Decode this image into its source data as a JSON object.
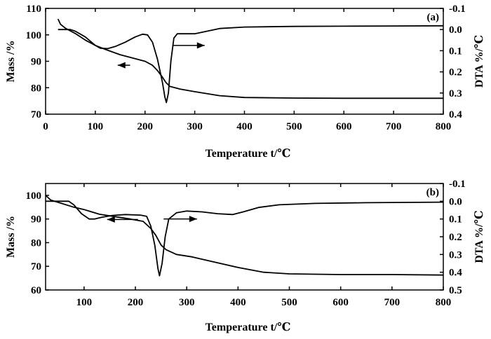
{
  "chart_data": [
    {
      "type": "line",
      "panel_label": "(a)",
      "xlabel": "Temperature t/℃",
      "ylabel": "Mass /%",
      "y2label": "DTA %/℃",
      "xlim": [
        0,
        800
      ],
      "ylim": [
        70,
        110
      ],
      "y2lim": [
        -0.1,
        0.4
      ],
      "y2_inverted": true,
      "x_ticks": [
        0,
        100,
        200,
        300,
        400,
        500,
        600,
        700,
        800
      ],
      "y_ticks": [
        70,
        80,
        90,
        100,
        110
      ],
      "y2_ticks": [
        -0.1,
        0.0,
        0.1,
        0.2,
        0.3,
        0.4
      ],
      "y2_tick_labels": [
        "-0.1",
        "0.0",
        "0.1",
        "0.2",
        "0.3",
        "0.4"
      ],
      "grid": false,
      "series": [
        {
          "axis": "left",
          "points": [
            [
              25,
              106
            ],
            [
              30,
              104
            ],
            [
              40,
              102.5
            ],
            [
              60,
              100.5
            ],
            [
              80,
              98
            ],
            [
              100,
              96
            ],
            [
              120,
              94.5
            ],
            [
              150,
              92.5
            ],
            [
              180,
              91
            ],
            [
              200,
              90
            ],
            [
              215,
              88.5
            ],
            [
              225,
              86.5
            ],
            [
              235,
              84
            ],
            [
              242,
              82
            ],
            [
              250,
              80.5
            ],
            [
              270,
              79.5
            ],
            [
              300,
              78.5
            ],
            [
              350,
              77
            ],
            [
              400,
              76.3
            ],
            [
              500,
              76.1
            ],
            [
              600,
              76
            ],
            [
              700,
              76
            ],
            [
              800,
              76
            ]
          ]
        },
        {
          "axis": "right",
          "points": [
            [
              25,
              0.0
            ],
            [
              50,
              0.0
            ],
            [
              60,
              0.008
            ],
            [
              80,
              0.035
            ],
            [
              100,
              0.075
            ],
            [
              110,
              0.088
            ],
            [
              125,
              0.09
            ],
            [
              140,
              0.08
            ],
            [
              160,
              0.06
            ],
            [
              180,
              0.035
            ],
            [
              195,
              0.022
            ],
            [
              205,
              0.025
            ],
            [
              215,
              0.06
            ],
            [
              225,
              0.14
            ],
            [
              235,
              0.25
            ],
            [
              240,
              0.32
            ],
            [
              243,
              0.345
            ],
            [
              247,
              0.3
            ],
            [
              252,
              0.15
            ],
            [
              258,
              0.04
            ],
            [
              265,
              0.02
            ],
            [
              280,
              0.02
            ],
            [
              300,
              0.02
            ],
            [
              320,
              0.01
            ],
            [
              350,
              -0.005
            ],
            [
              400,
              -0.012
            ],
            [
              500,
              -0.015
            ],
            [
              600,
              -0.016
            ],
            [
              700,
              -0.017
            ],
            [
              800,
              -0.018
            ]
          ]
        }
      ],
      "annotations": [
        {
          "type": "arrow",
          "direction": "left",
          "points_to": "left axis",
          "at": [
            145,
            170
          ],
          "y_value": 88.5
        },
        {
          "type": "arrow",
          "direction": "right",
          "points_to": "right axis",
          "at": [
            255,
            320
          ],
          "y2_value": 0.075
        }
      ]
    },
    {
      "type": "line",
      "panel_label": "(b)",
      "xlabel": "Temperature t/℃",
      "ylabel": "Mass /%",
      "y2label": "DTA %/℃",
      "xlim": [
        25,
        800
      ],
      "ylim": [
        60,
        105
      ],
      "y2lim": [
        -0.1,
        0.5
      ],
      "y2_inverted": true,
      "x_ticks": [
        100,
        200,
        300,
        400,
        500,
        600,
        700,
        800
      ],
      "y_ticks": [
        60,
        70,
        80,
        90,
        100
      ],
      "y2_ticks": [
        -0.1,
        0.0,
        0.1,
        0.2,
        0.3,
        0.4,
        0.5
      ],
      "y2_tick_labels": [
        "-0.1",
        "0.0",
        "0.1",
        "0.2",
        "0.3",
        "0.4",
        "0.5"
      ],
      "grid": false,
      "series": [
        {
          "axis": "left",
          "points": [
            [
              25,
              100
            ],
            [
              35,
              98
            ],
            [
              50,
              97
            ],
            [
              80,
              95
            ],
            [
              100,
              94
            ],
            [
              130,
              92
            ],
            [
              160,
              91
            ],
            [
              190,
              90
            ],
            [
              215,
              89
            ],
            [
              230,
              86
            ],
            [
              240,
              83
            ],
            [
              250,
              79
            ],
            [
              260,
              77
            ],
            [
              280,
              75
            ],
            [
              310,
              74
            ],
            [
              350,
              72
            ],
            [
              400,
              69.5
            ],
            [
              450,
              67.5
            ],
            [
              500,
              66.8
            ],
            [
              600,
              66.5
            ],
            [
              700,
              66.5
            ],
            [
              800,
              66.3
            ]
          ]
        },
        {
          "axis": "right",
          "points": [
            [
              25,
              0.0
            ],
            [
              70,
              0.0
            ],
            [
              80,
              0.02
            ],
            [
              95,
              0.07
            ],
            [
              110,
              0.1
            ],
            [
              120,
              0.1
            ],
            [
              135,
              0.09
            ],
            [
              155,
              0.08
            ],
            [
              180,
              0.075
            ],
            [
              210,
              0.078
            ],
            [
              222,
              0.085
            ],
            [
              230,
              0.14
            ],
            [
              238,
              0.25
            ],
            [
              244,
              0.38
            ],
            [
              247,
              0.42
            ],
            [
              252,
              0.35
            ],
            [
              258,
              0.2
            ],
            [
              265,
              0.1
            ],
            [
              280,
              0.065
            ],
            [
              300,
              0.055
            ],
            [
              330,
              0.06
            ],
            [
              360,
              0.07
            ],
            [
              390,
              0.075
            ],
            [
              410,
              0.06
            ],
            [
              440,
              0.035
            ],
            [
              480,
              0.02
            ],
            [
              550,
              0.012
            ],
            [
              650,
              0.008
            ],
            [
              800,
              0.005
            ]
          ]
        }
      ],
      "annotations": [
        {
          "type": "arrow",
          "direction": "left",
          "points_to": "left axis",
          "at": [
            145,
            205
          ],
          "y_value": 89.8
        },
        {
          "type": "arrow",
          "direction": "right",
          "points_to": "right axis",
          "at": [
            255,
            320
          ],
          "y2_value": 0.1
        }
      ]
    }
  ]
}
